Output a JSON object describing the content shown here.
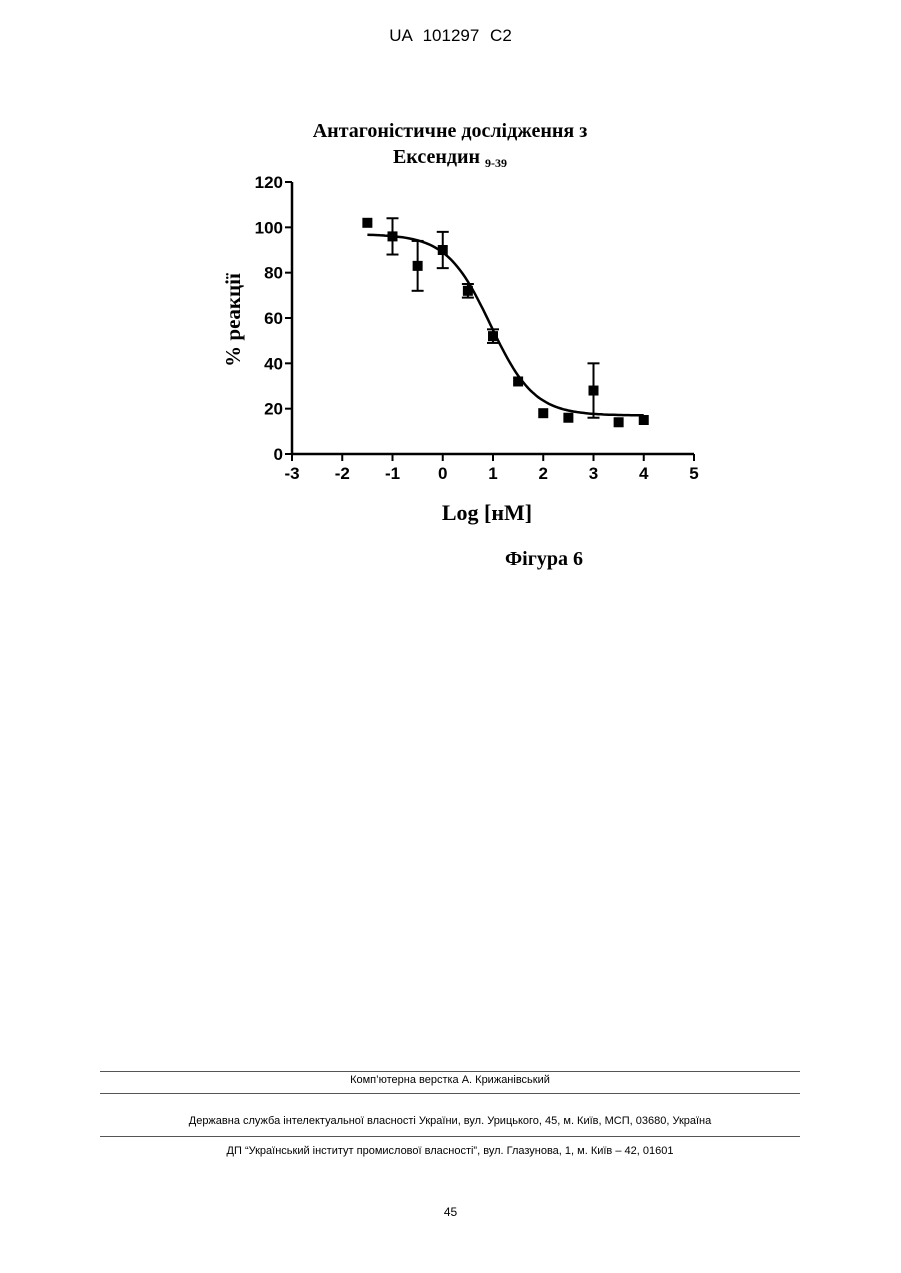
{
  "header": {
    "text": "UA   101297   C2"
  },
  "chart_data": {
    "type": "scatter",
    "title_main": "Антагоністичне дослідження з",
    "title_line2": "Ексендин",
    "title_subscript": "9-39",
    "xlabel": "Log [нМ]",
    "ylabel": "% реакції",
    "xlim": [
      -3,
      5
    ],
    "ylim": [
      0,
      120
    ],
    "x_ticks": [
      -3,
      -2,
      -1,
      0,
      1,
      2,
      3,
      4,
      5
    ],
    "x_tick_labels": [
      "-3",
      "-2",
      "-1",
      "0",
      "1",
      "2",
      "3",
      "4",
      "5"
    ],
    "y_ticks": [
      0,
      20,
      40,
      60,
      80,
      100,
      120
    ],
    "y_tick_labels": [
      "0",
      "20",
      "40",
      "60",
      "80",
      "100",
      "120"
    ],
    "grid": false,
    "points": [
      {
        "x": -1.5,
        "y": 102,
        "err": 2
      },
      {
        "x": -1.0,
        "y": 96,
        "err": 8
      },
      {
        "x": -0.5,
        "y": 83,
        "err": 11
      },
      {
        "x": 0.0,
        "y": 90,
        "err": 8
      },
      {
        "x": 0.5,
        "y": 72,
        "err": 3
      },
      {
        "x": 1.0,
        "y": 52,
        "err": 3
      },
      {
        "x": 1.5,
        "y": 32,
        "err": 2
      },
      {
        "x": 2.0,
        "y": 18,
        "err": 2
      },
      {
        "x": 2.5,
        "y": 16,
        "err": 2
      },
      {
        "x": 3.0,
        "y": 28,
        "err": 12
      },
      {
        "x": 3.5,
        "y": 14,
        "err": 1
      },
      {
        "x": 4.0,
        "y": 15,
        "err": 1
      }
    ],
    "fit_curve": {
      "top": 97,
      "bottom": 17,
      "log_ic50": 0.95,
      "hill_slope": -1.0
    }
  },
  "figure_caption": "Фігура 6",
  "footer": {
    "typesetting": "Комп’ютерна верстка А. Крижанівський",
    "office": "Державна служба інтелектуальної власності України, вул. Урицького, 45, м. Київ, МСП, 03680, Україна",
    "institute": "ДП “Український інститут промислової власності”, вул. Глазунова, 1, м. Київ – 42, 01601"
  },
  "page_number": "45"
}
